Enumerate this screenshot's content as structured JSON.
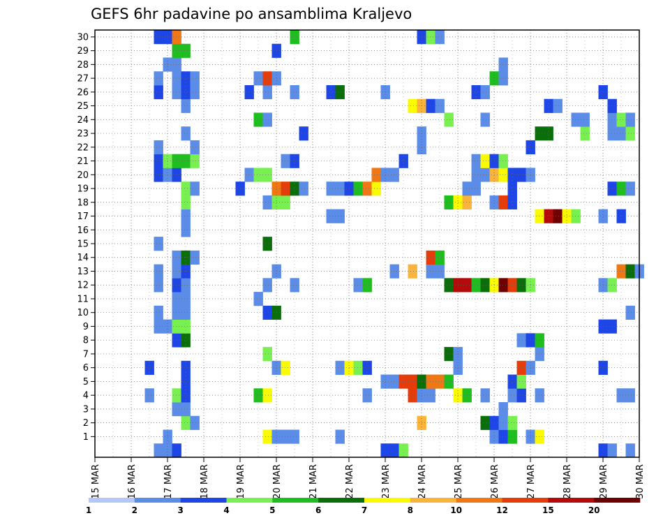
{
  "chart_data": {
    "type": "heatmap",
    "title": "GEFS 6hr padavine po ansamblima Kraljevo",
    "x_ticks": [
      "15 MAR",
      "16 MAR",
      "17 MAR",
      "18 MAR",
      "19 MAR",
      "20 MAR",
      "21 MAR",
      "22 MAR",
      "23 MAR",
      "24 MAR",
      "25 MAR",
      "26 MAR",
      "27 MAR",
      "28 MAR",
      "29 MAR",
      "30 MAR"
    ],
    "y_ticks": [
      "1",
      "2",
      "3",
      "4",
      "5",
      "6",
      "7",
      "8",
      "9",
      "10",
      "11",
      "12",
      "13",
      "14",
      "15",
      "16",
      "17",
      "18",
      "19",
      "20",
      "21",
      "22",
      "23",
      "24",
      "25",
      "26",
      "27",
      "28",
      "29",
      "30"
    ],
    "n_steps": 61,
    "n_members": 31,
    "grid": true,
    "colorbar": {
      "labels": [
        "1",
        "2",
        "3",
        "4",
        "5",
        "6",
        "7",
        "8",
        "10",
        "12",
        "15",
        "20"
      ],
      "colors": [
        "#b4c8f8",
        "#5a8ce8",
        "#1e46e6",
        "#78f050",
        "#1ebe1e",
        "#0a6e0a",
        "#fafa00",
        "#fab43c",
        "#f07814",
        "#e63c0a",
        "#b40a0a",
        "#6e0000"
      ]
    },
    "cells": [
      [
        7,
        0,
        1
      ],
      [
        8,
        0,
        1
      ],
      [
        9,
        0,
        2
      ],
      [
        32,
        0,
        2
      ],
      [
        33,
        0,
        2
      ],
      [
        34,
        0,
        3
      ],
      [
        56,
        0,
        2
      ],
      [
        57,
        0,
        1
      ],
      [
        59,
        0,
        1
      ],
      [
        8,
        1,
        1
      ],
      [
        19,
        1,
        6
      ],
      [
        20,
        1,
        1
      ],
      [
        21,
        1,
        1
      ],
      [
        22,
        1,
        1
      ],
      [
        27,
        1,
        1
      ],
      [
        44,
        1,
        1
      ],
      [
        45,
        1,
        2
      ],
      [
        46,
        1,
        4
      ],
      [
        48,
        1,
        1
      ],
      [
        49,
        1,
        6
      ],
      [
        10,
        2,
        3
      ],
      [
        11,
        2,
        1
      ],
      [
        36,
        2,
        7
      ],
      [
        43,
        2,
        5
      ],
      [
        44,
        2,
        2
      ],
      [
        45,
        2,
        1
      ],
      [
        46,
        2,
        3
      ],
      [
        9,
        3,
        1
      ],
      [
        10,
        3,
        1
      ],
      [
        45,
        3,
        1
      ],
      [
        6,
        4,
        1
      ],
      [
        9,
        4,
        3
      ],
      [
        10,
        4,
        2
      ],
      [
        18,
        4,
        4
      ],
      [
        19,
        4,
        6
      ],
      [
        30,
        4,
        1
      ],
      [
        35,
        4,
        9
      ],
      [
        36,
        4,
        1
      ],
      [
        37,
        4,
        1
      ],
      [
        40,
        4,
        6
      ],
      [
        41,
        4,
        4
      ],
      [
        43,
        4,
        1
      ],
      [
        46,
        4,
        1
      ],
      [
        47,
        4,
        2
      ],
      [
        49,
        4,
        1
      ],
      [
        58,
        4,
        1
      ],
      [
        59,
        4,
        1
      ],
      [
        10,
        5,
        2
      ],
      [
        32,
        5,
        1
      ],
      [
        33,
        5,
        1
      ],
      [
        34,
        5,
        9
      ],
      [
        35,
        5,
        9
      ],
      [
        36,
        5,
        5
      ],
      [
        37,
        5,
        8
      ],
      [
        38,
        5,
        8
      ],
      [
        39,
        5,
        4
      ],
      [
        46,
        5,
        2
      ],
      [
        47,
        5,
        3
      ],
      [
        6,
        6,
        2
      ],
      [
        10,
        6,
        2
      ],
      [
        20,
        6,
        1
      ],
      [
        21,
        6,
        6
      ],
      [
        27,
        6,
        1
      ],
      [
        28,
        6,
        6
      ],
      [
        29,
        6,
        3
      ],
      [
        30,
        6,
        2
      ],
      [
        40,
        6,
        1
      ],
      [
        47,
        6,
        9
      ],
      [
        48,
        6,
        1
      ],
      [
        56,
        6,
        2
      ],
      [
        19,
        7,
        3
      ],
      [
        39,
        7,
        5
      ],
      [
        40,
        7,
        1
      ],
      [
        49,
        7,
        1
      ],
      [
        9,
        8,
        2
      ],
      [
        10,
        8,
        5
      ],
      [
        47,
        8,
        1
      ],
      [
        48,
        8,
        2
      ],
      [
        49,
        8,
        4
      ],
      [
        7,
        9,
        1
      ],
      [
        8,
        9,
        1
      ],
      [
        9,
        9,
        3
      ],
      [
        10,
        9,
        3
      ],
      [
        56,
        9,
        2
      ],
      [
        57,
        9,
        2
      ],
      [
        7,
        10,
        1
      ],
      [
        9,
        10,
        1
      ],
      [
        10,
        10,
        1
      ],
      [
        19,
        10,
        2
      ],
      [
        20,
        10,
        5
      ],
      [
        59,
        10,
        1
      ],
      [
        9,
        11,
        1
      ],
      [
        10,
        11,
        1
      ],
      [
        18,
        11,
        1
      ],
      [
        7,
        12,
        1
      ],
      [
        9,
        12,
        2
      ],
      [
        10,
        12,
        1
      ],
      [
        19,
        12,
        1
      ],
      [
        22,
        12,
        1
      ],
      [
        29,
        12,
        1
      ],
      [
        30,
        12,
        4
      ],
      [
        39,
        12,
        5
      ],
      [
        40,
        12,
        10
      ],
      [
        41,
        12,
        10
      ],
      [
        42,
        12,
        4
      ],
      [
        43,
        12,
        5
      ],
      [
        44,
        12,
        6
      ],
      [
        45,
        12,
        11
      ],
      [
        46,
        12,
        9
      ],
      [
        47,
        12,
        5
      ],
      [
        48,
        12,
        3
      ],
      [
        56,
        12,
        1
      ],
      [
        57,
        12,
        3
      ],
      [
        7,
        13,
        1
      ],
      [
        9,
        13,
        1
      ],
      [
        10,
        13,
        2
      ],
      [
        20,
        13,
        1
      ],
      [
        33,
        13,
        1
      ],
      [
        35,
        13,
        7
      ],
      [
        37,
        13,
        1
      ],
      [
        38,
        13,
        1
      ],
      [
        58,
        13,
        8
      ],
      [
        59,
        13,
        5
      ],
      [
        60,
        13,
        1
      ],
      [
        9,
        14,
        1
      ],
      [
        10,
        14,
        5
      ],
      [
        11,
        14,
        1
      ],
      [
        37,
        14,
        9
      ],
      [
        38,
        14,
        4
      ],
      [
        7,
        15,
        1
      ],
      [
        19,
        15,
        5
      ],
      [
        10,
        16,
        1
      ],
      [
        10,
        17,
        1
      ],
      [
        26,
        17,
        1
      ],
      [
        27,
        17,
        1
      ],
      [
        49,
        17,
        6
      ],
      [
        50,
        17,
        10
      ],
      [
        51,
        17,
        11
      ],
      [
        52,
        17,
        6
      ],
      [
        53,
        17,
        3
      ],
      [
        56,
        17,
        1
      ],
      [
        58,
        17,
        2
      ],
      [
        10,
        18,
        3
      ],
      [
        19,
        18,
        1
      ],
      [
        20,
        18,
        3
      ],
      [
        21,
        18,
        3
      ],
      [
        39,
        18,
        4
      ],
      [
        40,
        18,
        6
      ],
      [
        41,
        18,
        7
      ],
      [
        44,
        18,
        1
      ],
      [
        45,
        18,
        9
      ],
      [
        46,
        18,
        2
      ],
      [
        10,
        19,
        3
      ],
      [
        11,
        19,
        1
      ],
      [
        16,
        19,
        2
      ],
      [
        20,
        19,
        8
      ],
      [
        21,
        19,
        9
      ],
      [
        22,
        19,
        5
      ],
      [
        23,
        19,
        1
      ],
      [
        26,
        19,
        1
      ],
      [
        27,
        19,
        1
      ],
      [
        28,
        19,
        2
      ],
      [
        29,
        19,
        4
      ],
      [
        30,
        19,
        8
      ],
      [
        31,
        19,
        6
      ],
      [
        41,
        19,
        1
      ],
      [
        42,
        19,
        1
      ],
      [
        46,
        19,
        2
      ],
      [
        57,
        19,
        2
      ],
      [
        58,
        19,
        4
      ],
      [
        59,
        19,
        1
      ],
      [
        7,
        20,
        2
      ],
      [
        8,
        20,
        1
      ],
      [
        9,
        20,
        2
      ],
      [
        17,
        20,
        1
      ],
      [
        18,
        20,
        3
      ],
      [
        19,
        20,
        3
      ],
      [
        31,
        20,
        8
      ],
      [
        32,
        20,
        1
      ],
      [
        33,
        20,
        1
      ],
      [
        42,
        20,
        1
      ],
      [
        43,
        20,
        1
      ],
      [
        44,
        20,
        7
      ],
      [
        45,
        20,
        6
      ],
      [
        46,
        20,
        2
      ],
      [
        47,
        20,
        2
      ],
      [
        48,
        20,
        1
      ],
      [
        7,
        21,
        2
      ],
      [
        8,
        21,
        3
      ],
      [
        9,
        21,
        4
      ],
      [
        10,
        21,
        4
      ],
      [
        11,
        21,
        3
      ],
      [
        21,
        21,
        1
      ],
      [
        22,
        21,
        2
      ],
      [
        34,
        21,
        2
      ],
      [
        42,
        21,
        1
      ],
      [
        43,
        21,
        6
      ],
      [
        44,
        21,
        2
      ],
      [
        45,
        21,
        3
      ],
      [
        7,
        22,
        1
      ],
      [
        11,
        22,
        1
      ],
      [
        36,
        22,
        1
      ],
      [
        48,
        22,
        2
      ],
      [
        10,
        23,
        1
      ],
      [
        23,
        23,
        2
      ],
      [
        36,
        23,
        1
      ],
      [
        49,
        23,
        5
      ],
      [
        50,
        23,
        5
      ],
      [
        54,
        23,
        3
      ],
      [
        57,
        23,
        1
      ],
      [
        58,
        23,
        1
      ],
      [
        59,
        23,
        3
      ],
      [
        18,
        24,
        4
      ],
      [
        19,
        24,
        1
      ],
      [
        39,
        24,
        3
      ],
      [
        43,
        24,
        1
      ],
      [
        53,
        24,
        1
      ],
      [
        54,
        24,
        1
      ],
      [
        57,
        24,
        1
      ],
      [
        58,
        24,
        3
      ],
      [
        59,
        24,
        1
      ],
      [
        10,
        25,
        1
      ],
      [
        35,
        25,
        6
      ],
      [
        36,
        25,
        7
      ],
      [
        37,
        25,
        2
      ],
      [
        38,
        25,
        1
      ],
      [
        50,
        25,
        2
      ],
      [
        51,
        25,
        1
      ],
      [
        57,
        25,
        2
      ],
      [
        7,
        26,
        2
      ],
      [
        9,
        26,
        1
      ],
      [
        10,
        26,
        2
      ],
      [
        11,
        26,
        1
      ],
      [
        17,
        26,
        2
      ],
      [
        19,
        26,
        1
      ],
      [
        22,
        26,
        1
      ],
      [
        26,
        26,
        2
      ],
      [
        27,
        26,
        5
      ],
      [
        32,
        26,
        1
      ],
      [
        42,
        26,
        2
      ],
      [
        43,
        26,
        1
      ],
      [
        56,
        26,
        2
      ],
      [
        7,
        27,
        1
      ],
      [
        9,
        27,
        1
      ],
      [
        10,
        27,
        2
      ],
      [
        11,
        27,
        1
      ],
      [
        18,
        27,
        1
      ],
      [
        19,
        27,
        9
      ],
      [
        20,
        27,
        1
      ],
      [
        44,
        27,
        4
      ],
      [
        45,
        27,
        1
      ],
      [
        8,
        28,
        1
      ],
      [
        9,
        28,
        1
      ],
      [
        45,
        28,
        1
      ],
      [
        9,
        29,
        4
      ],
      [
        10,
        29,
        4
      ],
      [
        20,
        29,
        2
      ],
      [
        7,
        30,
        2
      ],
      [
        8,
        30,
        2
      ],
      [
        9,
        30,
        8
      ],
      [
        22,
        30,
        4
      ],
      [
        36,
        30,
        2
      ],
      [
        37,
        30,
        3
      ],
      [
        38,
        30,
        1
      ]
    ]
  }
}
